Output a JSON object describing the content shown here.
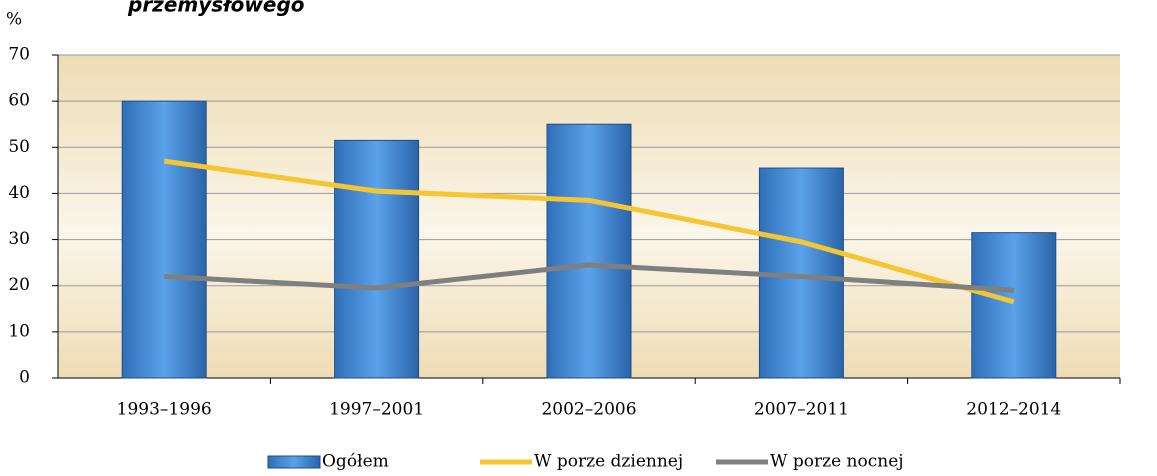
{
  "chart_data": {
    "type": "bar",
    "title": "przemysłowego",
    "y_label": "%",
    "categories": [
      "1993–1996",
      "1997–2001",
      "2002–2006",
      "2007–2011",
      "2012–2014"
    ],
    "series": [
      {
        "name": "Ogółem",
        "type": "bar",
        "color": "#4a8fd8",
        "values": [
          60,
          51.5,
          55,
          45.5,
          31.5
        ]
      },
      {
        "name": "W porze dziennej",
        "type": "line",
        "color": "#f5c631",
        "values": [
          47,
          40.5,
          38.5,
          29.5,
          16.5
        ]
      },
      {
        "name": "W porze nocnej",
        "type": "line",
        "color": "#7f7f7f",
        "values": [
          22,
          19.5,
          24.5,
          22,
          19
        ]
      }
    ],
    "ylim": [
      0,
      70
    ],
    "yticks": [
      0,
      10,
      20,
      30,
      40,
      50,
      60,
      70
    ],
    "grid": true,
    "legend": "bottom"
  }
}
